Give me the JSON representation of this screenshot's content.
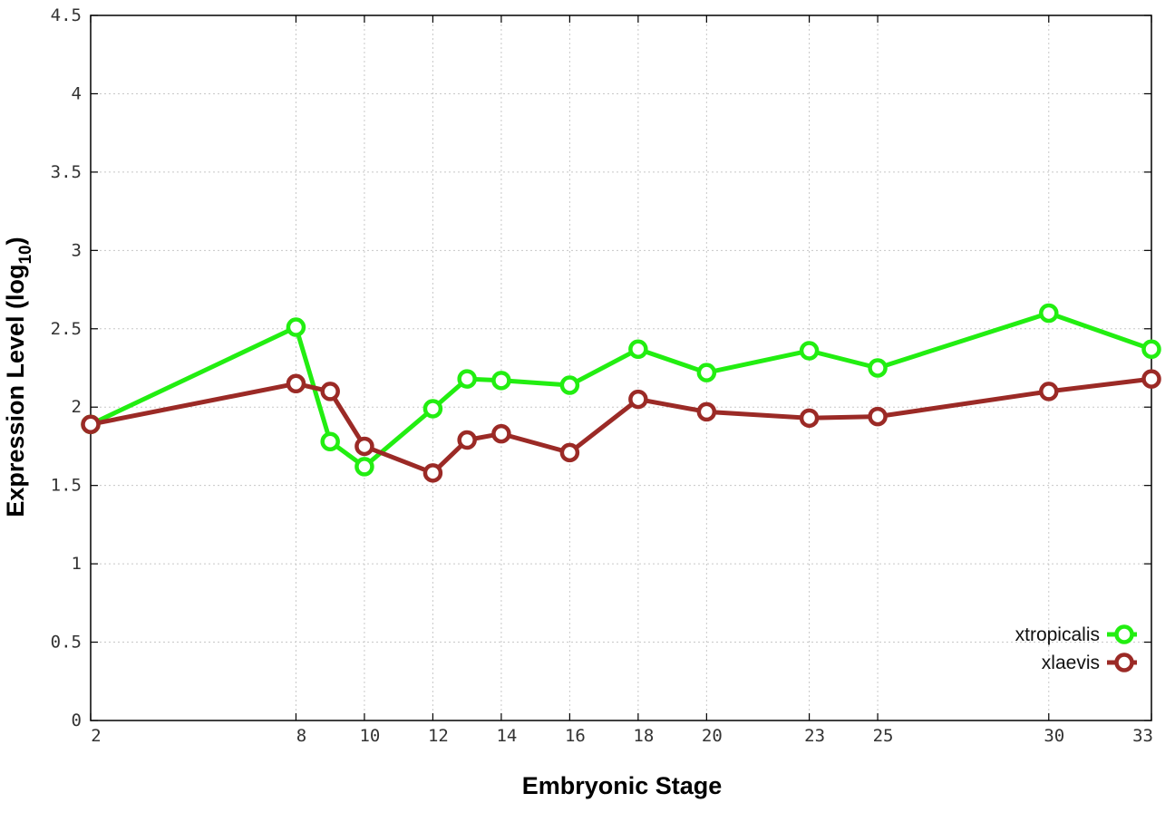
{
  "chart_data": {
    "type": "line",
    "xlabel": "Embryonic Stage",
    "ylabel_main": "Expression Level (log",
    "ylabel_sub": "10",
    "ylabel_close": ")",
    "ylim": [
      0,
      4.5
    ],
    "xlim": [
      2,
      33
    ],
    "grid": true,
    "legend_position": "bottom-right",
    "y_ticks": [
      {
        "value": 0,
        "label": "0"
      },
      {
        "value": 0.5,
        "label": "0.5"
      },
      {
        "value": 1,
        "label": "1"
      },
      {
        "value": 1.5,
        "label": "1.5"
      },
      {
        "value": 2,
        "label": "2"
      },
      {
        "value": 2.5,
        "label": "2.5"
      },
      {
        "value": 3,
        "label": "3"
      },
      {
        "value": 3.5,
        "label": "3.5"
      },
      {
        "value": 4,
        "label": "4"
      },
      {
        "value": 4.5,
        "label": "4.5"
      }
    ],
    "x_ticks": [
      {
        "value": 2,
        "label": "2"
      },
      {
        "value": 8,
        "label": "8"
      },
      {
        "value": 10,
        "label": "10"
      },
      {
        "value": 12,
        "label": "12"
      },
      {
        "value": 14,
        "label": "14"
      },
      {
        "value": 16,
        "label": "16"
      },
      {
        "value": 18,
        "label": "18"
      },
      {
        "value": 20,
        "label": "20"
      },
      {
        "value": 23,
        "label": "23"
      },
      {
        "value": 25,
        "label": "25"
      },
      {
        "value": 30,
        "label": "30"
      },
      {
        "value": 33,
        "label": "33"
      }
    ],
    "series": [
      {
        "name": "xtropicalis",
        "color": "#22ee11",
        "points": [
          {
            "x": 2,
            "y": 1.89
          },
          {
            "x": 8,
            "y": 2.51
          },
          {
            "x": 9,
            "y": 1.78
          },
          {
            "x": 10,
            "y": 1.62
          },
          {
            "x": 12,
            "y": 1.99
          },
          {
            "x": 13,
            "y": 2.18
          },
          {
            "x": 14,
            "y": 2.17
          },
          {
            "x": 16,
            "y": 2.14
          },
          {
            "x": 18,
            "y": 2.37
          },
          {
            "x": 20,
            "y": 2.22
          },
          {
            "x": 23,
            "y": 2.36
          },
          {
            "x": 25,
            "y": 2.25
          },
          {
            "x": 30,
            "y": 2.6
          },
          {
            "x": 33,
            "y": 2.37
          }
        ]
      },
      {
        "name": "xlaevis",
        "color": "#9b2a26",
        "points": [
          {
            "x": 2,
            "y": 1.89
          },
          {
            "x": 8,
            "y": 2.15
          },
          {
            "x": 9,
            "y": 2.1
          },
          {
            "x": 10,
            "y": 1.75
          },
          {
            "x": 12,
            "y": 1.58
          },
          {
            "x": 13,
            "y": 1.79
          },
          {
            "x": 14,
            "y": 1.83
          },
          {
            "x": 16,
            "y": 1.71
          },
          {
            "x": 18,
            "y": 2.05
          },
          {
            "x": 20,
            "y": 1.97
          },
          {
            "x": 23,
            "y": 1.93
          },
          {
            "x": 25,
            "y": 1.94
          },
          {
            "x": 30,
            "y": 2.1
          },
          {
            "x": 33,
            "y": 2.18
          }
        ]
      }
    ]
  }
}
